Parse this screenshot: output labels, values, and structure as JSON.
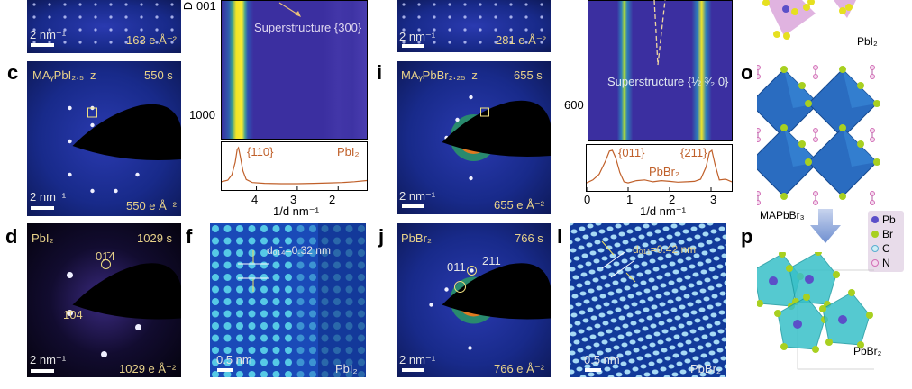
{
  "panels": {
    "a": {
      "scale": "2 nm⁻¹",
      "dose": "163 e Å⁻²"
    },
    "c": {
      "letter": "c",
      "phase": "MAᵧPbI₂.₅₋z",
      "time": "550 s",
      "scale": "2 nm⁻¹",
      "dose": "550 e Å⁻²"
    },
    "d": {
      "letter": "d",
      "phase": "PbI₂",
      "time": "1029 s",
      "scale": "2 nm⁻¹",
      "dose": "1029 e Å⁻²",
      "spot1": "01̄4",
      "spot2": "1̄04"
    },
    "e": {
      "yaxis_fragment": "D",
      "ytick_fragment": "001",
      "ytick": "1000",
      "annotation": "Superstructure {300}",
      "profile_peak": "{110}",
      "profile_phase": "PbI₂",
      "xticks": [
        "4",
        "3",
        "2"
      ],
      "xlabel": "1/d nm⁻¹"
    },
    "f": {
      "letter": "f",
      "spacing": "d₀₁̄₄=0.32 nm",
      "scale": "0.5 nm",
      "phase": "PbI₂"
    },
    "h": {
      "scale": "2 nm⁻¹",
      "dose": "281 e Å⁻²"
    },
    "i": {
      "letter": "i",
      "phase": "MAᵧPbBr₂.₂₅₋z",
      "time": "655 s",
      "scale": "2 nm⁻¹",
      "dose": "655 e Å⁻²"
    },
    "j": {
      "letter": "j",
      "phase": "PbBr₂",
      "time": "766 s",
      "scale": "2 nm⁻¹",
      "dose": "766 e Å⁻²",
      "spot1": "011",
      "spot2": "211"
    },
    "k": {
      "ytick": "600",
      "annotation": "Superstructure {½ ³⁄₂ 0}",
      "profile_peak1": "{011}",
      "profile_peak2": "{211}",
      "profile_phase": "PbBr₂",
      "xticks": [
        "0",
        "1",
        "2",
        "3"
      ],
      "xlabel": "1/d nm⁻¹"
    },
    "l": {
      "letter": "l",
      "spacing": "d₀₁₁=0.42 nm",
      "scale": "0.5 nm",
      "phase": "PbBr₂"
    },
    "n": {
      "label": "PbI₂"
    },
    "o": {
      "letter": "o",
      "label": "MAPbBr₃"
    },
    "p": {
      "letter": "p",
      "label": "PbBr₂",
      "legend": [
        "Pb",
        "Br",
        "C",
        "N"
      ]
    }
  },
  "colors": {
    "annotation_text": "#e8d28a",
    "profile_line": "#c0602a",
    "heatmap_bg": "#3b2fa0",
    "heatmap_peak": "#f5e622",
    "Pb": "#5b4fc8",
    "Br": "#a8d020",
    "C": "#8fd6e6",
    "N": "#d26fb6",
    "octahedron_MAPbBr3": "#2a6cc0",
    "polyhedron_PbBr2": "#38c0c8",
    "polyhedron_PbI2": "#d8a0d8"
  },
  "chart_data": [
    {
      "type": "line",
      "panel": "e",
      "xlabel": "1/d nm⁻¹",
      "xlim": [
        4.85,
        1.3
      ],
      "xticks": [
        4,
        3,
        2
      ],
      "peaks": [
        {
          "label": "{110}",
          "x": 4.45
        }
      ],
      "series": [
        {
          "name": "PbI₂",
          "x": [
            4.85,
            4.7,
            4.6,
            4.52,
            4.47,
            4.44,
            4.4,
            4.33,
            4.25,
            4.1,
            3.8,
            3.4,
            3.0,
            2.6,
            2.2,
            1.9,
            1.6,
            1.3
          ],
          "y": [
            0.12,
            0.16,
            0.3,
            0.62,
            0.95,
            1.0,
            0.8,
            0.4,
            0.18,
            0.1,
            0.08,
            0.07,
            0.07,
            0.08,
            0.09,
            0.1,
            0.12,
            0.15
          ]
        }
      ]
    },
    {
      "type": "line",
      "panel": "k",
      "xlabel": "1/d nm⁻¹",
      "xlim": [
        0,
        3.5
      ],
      "xticks": [
        0,
        1,
        2,
        3
      ],
      "peaks": [
        {
          "label": "{011}",
          "x": 0.58
        },
        {
          "label": "{211}",
          "x": 3.0
        }
      ],
      "series": [
        {
          "name": "PbBr₂",
          "x": [
            0,
            0.15,
            0.3,
            0.45,
            0.55,
            0.62,
            0.7,
            0.8,
            0.9,
            1.0,
            1.2,
            1.4,
            1.6,
            1.8,
            2.0,
            2.2,
            2.4,
            2.6,
            2.75,
            2.88,
            2.96,
            3.02,
            3.1,
            3.2,
            3.35,
            3.5
          ],
          "y": [
            0.12,
            0.2,
            0.35,
            0.7,
            0.98,
            1.0,
            0.8,
            0.4,
            0.15,
            0.12,
            0.18,
            0.2,
            0.15,
            0.18,
            0.16,
            0.14,
            0.15,
            0.16,
            0.22,
            0.55,
            0.95,
            1.0,
            0.6,
            0.2,
            0.22,
            0.15
          ]
        }
      ]
    }
  ]
}
